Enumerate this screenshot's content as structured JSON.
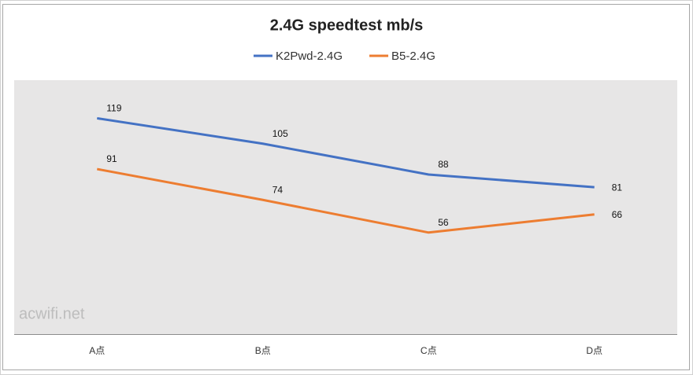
{
  "chart_data": {
    "type": "line",
    "title": "2.4G speedtest  mb/s",
    "categories": [
      "A点",
      "B点",
      "C点",
      "D点"
    ],
    "series": [
      {
        "name": "K2Pwd-2.4G",
        "color": "#4472c4",
        "values": [
          119,
          105,
          88,
          81
        ]
      },
      {
        "name": "B5-2.4G",
        "color": "#ed7d31",
        "values": [
          91,
          74,
          56,
          66
        ]
      }
    ],
    "ylim": [
      0,
      140
    ],
    "annotation": "acwifi.net"
  }
}
